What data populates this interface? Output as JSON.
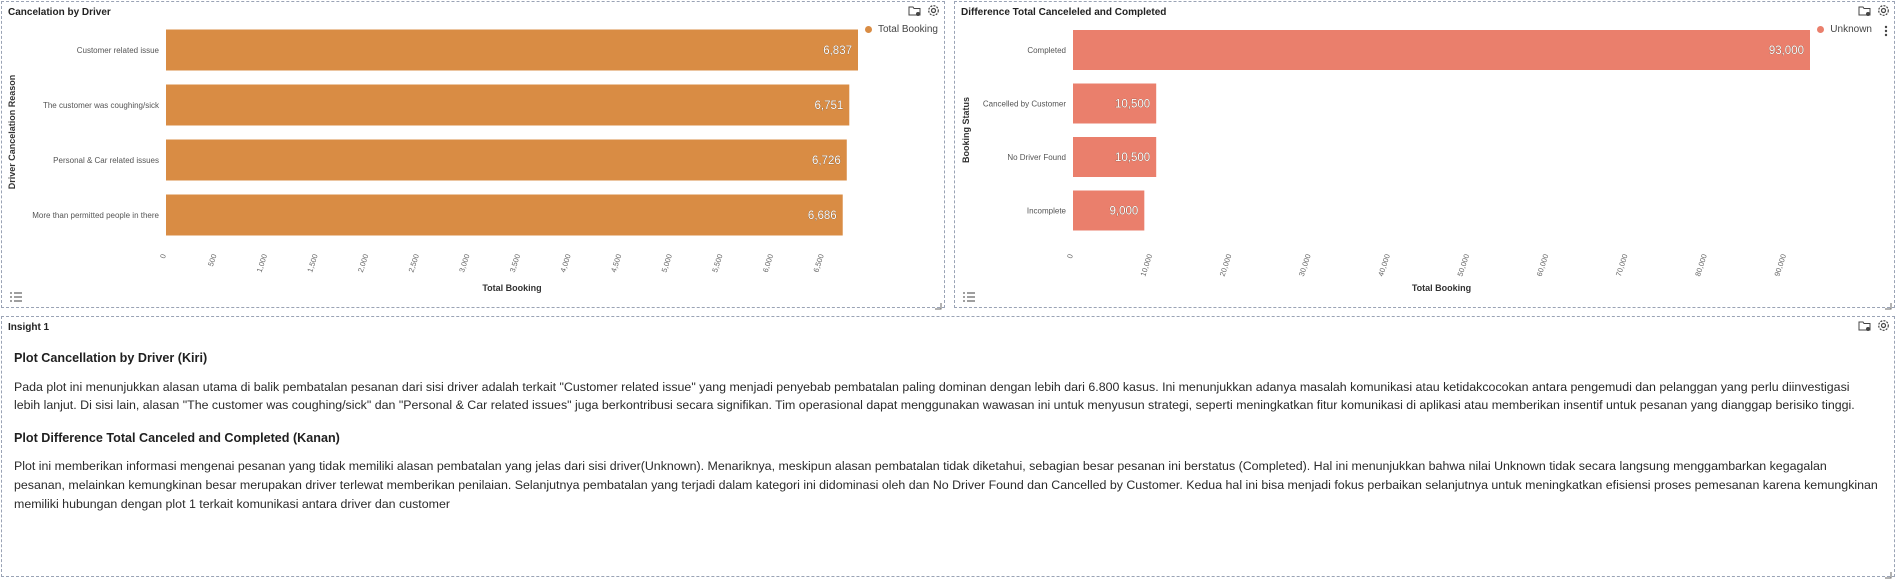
{
  "left_panel": {
    "title": "Cancelation by Driver",
    "legend": "Total Booking",
    "color": "#D98C44"
  },
  "right_panel": {
    "title": "Difference Total Canceleled and Completed",
    "legend": "Unknown",
    "color": "#EA7F6C"
  },
  "insight": {
    "title": "Insight 1",
    "heading1": "Plot Cancellation by Driver (Kiri)",
    "para1": "Pada plot ini menunjukkan alasan utama di balik pembatalan pesanan dari sisi driver adalah terkait \"Customer related issue\" yang menjadi penyebab pembatalan paling dominan dengan lebih dari 6.800 kasus. Ini menunjukkan adanya masalah komunikasi atau ketidakcocokan antara pengemudi dan pelanggan yang perlu diinvestigasi lebih lanjut. Di sisi lain, alasan \"The customer was coughing/sick\" dan \"Personal & Car related issues\" juga berkontribusi secara signifikan. Tim operasional dapat menggunakan wawasan ini untuk menyusun strategi, seperti meningkatkan fitur komunikasi di aplikasi atau memberikan insentif untuk pesanan yang dianggap berisiko tinggi.",
    "heading2": "Plot Difference Total Canceled and Completed (Kanan)",
    "para2": "Plot ini memberikan informasi mengenai pesanan yang tidak memiliki alasan pembatalan yang jelas dari sisi driver(Unknown). Menariknya, meskipun alasan pembatalan tidak diketahui, sebagian besar pesanan ini berstatus (Completed). Hal ini menunjukkan bahwa nilai Unknown tidak secara langsung menggambarkan kegagalan pesanan, melainkan kemungkinan besar merupakan driver terlewat memberikan penilaian. Selanjutnya pembatalan yang terjadi dalam kategori ini didominasi oleh dan No Driver Found dan Cancelled by Customer. Kedua hal ini bisa menjadi fokus perbaikan selanjutnya untuk meningkatkan efisiensi proses pemesanan karena kemungkinan memiliki hubungan dengan plot 1 terkait komunikasi antara driver dan customer"
  },
  "chart_data": [
    {
      "type": "bar",
      "orientation": "horizontal",
      "title": "Cancelation by Driver",
      "categories": [
        "Customer related issue",
        "The customer was coughing/sick",
        "Personal & Car related issues",
        "More than permitted people in there"
      ],
      "values": [
        6837,
        6751,
        6726,
        6686
      ],
      "value_labels": [
        "6,837",
        "6,751",
        "6,726",
        "6,686"
      ],
      "series": [
        {
          "name": "Total Booking",
          "values": [
            6837,
            6751,
            6726,
            6686
          ]
        }
      ],
      "xlabel": "Total Booking",
      "ylabel": "Driver Cancelation Reason",
      "xlim": [
        0,
        6837
      ],
      "xticks": [
        0,
        500,
        1000,
        1500,
        2000,
        2500,
        3000,
        3500,
        4000,
        4500,
        5000,
        5500,
        6000,
        6500
      ],
      "xtick_labels": [
        "0",
        "500",
        "1,000",
        "1,500",
        "2,000",
        "2,500",
        "3,000",
        "3,500",
        "4,000",
        "4,500",
        "5,000",
        "5,500",
        "6,000",
        "6,500"
      ],
      "legend_position": "top-right",
      "grid": false
    },
    {
      "type": "bar",
      "orientation": "horizontal",
      "title": "Difference Total Canceleled and Completed",
      "categories": [
        "Completed",
        "Cancelled by Customer",
        "No Driver Found",
        "Incomplete"
      ],
      "values": [
        93000,
        10500,
        10500,
        9000
      ],
      "value_labels": [
        "93,000",
        "10,500",
        "10,500",
        "9,000"
      ],
      "series": [
        {
          "name": "Unknown",
          "values": [
            93000,
            10500,
            10500,
            9000
          ]
        }
      ],
      "xlabel": "Total Booking",
      "ylabel": "Booking Status",
      "xlim": [
        0,
        93000
      ],
      "xticks": [
        0,
        10000,
        20000,
        30000,
        40000,
        50000,
        60000,
        70000,
        80000,
        90000
      ],
      "xtick_labels": [
        "0",
        "10,000",
        "20,000",
        "30,000",
        "40,000",
        "50,000",
        "60,000",
        "70,000",
        "80,000",
        "90,000"
      ],
      "legend_position": "top-right",
      "grid": false
    }
  ]
}
